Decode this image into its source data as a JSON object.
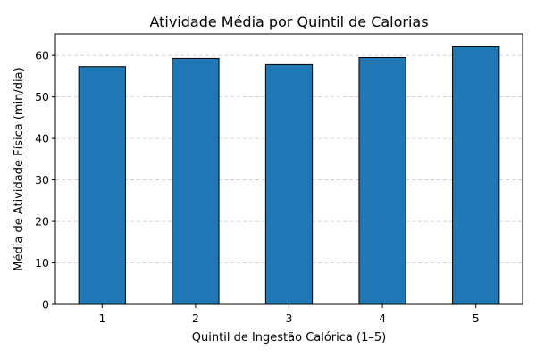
{
  "chart_data": {
    "type": "bar",
    "title": "Atividade Média por Quintil de Calorias",
    "xlabel": "Quintil de Ingestão Calórica (1–5)",
    "ylabel": "Média de Atividade Física (min/dia)",
    "categories": [
      "1",
      "2",
      "3",
      "4",
      "5"
    ],
    "values": [
      57.3,
      59.3,
      57.8,
      59.5,
      62.1
    ],
    "ylim": [
      0,
      65.2
    ],
    "yticks": [
      0,
      10,
      20,
      30,
      40,
      50,
      60
    ],
    "grid": "y-dashed",
    "colors": {
      "bar_fill": "#1f77b4",
      "bar_edge": "#000000",
      "grid": "#cccccc",
      "axis": "#000000"
    }
  }
}
